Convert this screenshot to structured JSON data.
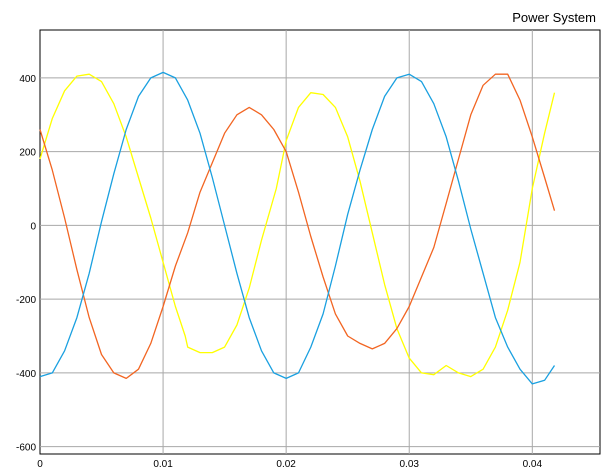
{
  "chart_data": {
    "type": "line",
    "title": "Power System",
    "xlabel": "",
    "ylabel": "",
    "xlim": [
      0,
      0.0455
    ],
    "ylim": [
      -620,
      530
    ],
    "xticks": [
      0,
      0.01,
      0.02,
      0.03,
      0.04
    ],
    "xtick_labels": [
      "0",
      "0.01",
      "0.02",
      "0.03",
      "0.04"
    ],
    "yticks": [
      400,
      200,
      0,
      -200,
      -400,
      -600
    ],
    "ytick_labels": [
      "400",
      "200",
      "0",
      "-200",
      "-400",
      "-600"
    ],
    "grid": true,
    "legend": "none",
    "series": [
      {
        "color": "#FFFF00",
        "x": [
          0,
          0.001,
          0.002,
          0.003,
          0.004,
          0.005,
          0.006,
          0.007,
          0.008,
          0.009,
          0.01,
          0.011,
          0.0118,
          0.012,
          0.013,
          0.014,
          0.015,
          0.016,
          0.017,
          0.018,
          0.0192,
          0.02,
          0.021,
          0.022,
          0.023,
          0.024,
          0.025,
          0.026,
          0.027,
          0.028,
          0.029,
          0.03,
          0.031,
          0.032,
          0.033,
          0.034,
          0.035,
          0.036,
          0.037,
          0.038,
          0.039,
          0.04,
          0.041,
          0.0418
        ],
        "y": [
          180,
          290,
          365,
          405,
          410,
          390,
          330,
          240,
          130,
          20,
          -100,
          -220,
          -300,
          -330,
          -345,
          -345,
          -330,
          -270,
          -170,
          -40,
          100,
          230,
          320,
          360,
          355,
          320,
          240,
          120,
          -20,
          -160,
          -280,
          -360,
          -400,
          -405,
          -380,
          -400,
          -410,
          -390,
          -330,
          -230,
          -100,
          100,
          250,
          360
        ]
      },
      {
        "color": "#F26522",
        "x": [
          0,
          0.001,
          0.002,
          0.003,
          0.004,
          0.005,
          0.006,
          0.007,
          0.008,
          0.009,
          0.01,
          0.011,
          0.012,
          0.013,
          0.014,
          0.015,
          0.016,
          0.017,
          0.018,
          0.019,
          0.02,
          0.021,
          0.022,
          0.023,
          0.024,
          0.025,
          0.026,
          0.027,
          0.028,
          0.029,
          0.03,
          0.031,
          0.032,
          0.033,
          0.034,
          0.035,
          0.036,
          0.037,
          0.038,
          0.039,
          0.04,
          0.041,
          0.0418
        ],
        "y": [
          260,
          150,
          20,
          -120,
          -250,
          -350,
          -400,
          -415,
          -390,
          -320,
          -220,
          -110,
          -20,
          90,
          170,
          250,
          300,
          320,
          300,
          260,
          200,
          90,
          -30,
          -140,
          -240,
          -300,
          -320,
          -335,
          -320,
          -280,
          -220,
          -140,
          -60,
          60,
          180,
          300,
          380,
          410,
          410,
          340,
          240,
          130,
          40
        ]
      },
      {
        "color": "#1AA0E0",
        "x": [
          0,
          0.001,
          0.002,
          0.003,
          0.004,
          0.005,
          0.006,
          0.007,
          0.008,
          0.009,
          0.01,
          0.011,
          0.012,
          0.013,
          0.014,
          0.015,
          0.016,
          0.017,
          0.018,
          0.019,
          0.02,
          0.021,
          0.022,
          0.023,
          0.024,
          0.025,
          0.026,
          0.027,
          0.028,
          0.029,
          0.03,
          0.031,
          0.032,
          0.033,
          0.034,
          0.035,
          0.036,
          0.037,
          0.038,
          0.039,
          0.04,
          0.041,
          0.0418
        ],
        "y": [
          -410,
          -400,
          -340,
          -250,
          -130,
          10,
          140,
          260,
          350,
          400,
          415,
          400,
          340,
          250,
          130,
          0,
          -130,
          -250,
          -340,
          -400,
          -415,
          -400,
          -330,
          -240,
          -110,
          30,
          150,
          260,
          350,
          400,
          410,
          390,
          330,
          240,
          120,
          -10,
          -130,
          -250,
          -330,
          -390,
          -430,
          -420,
          -380
        ]
      }
    ]
  }
}
